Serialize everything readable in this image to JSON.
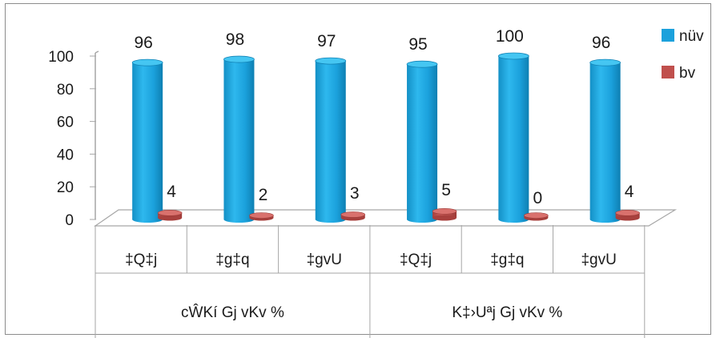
{
  "chart_data": {
    "type": "bar",
    "three_d": true,
    "ylim": [
      0,
      100
    ],
    "y_ticks": [
      "0",
      "20",
      "40",
      "60",
      "80",
      "100"
    ],
    "categories": [
      "‡Q‡j",
      "‡g‡q",
      "‡gvU",
      "‡Q‡j",
      "‡g‡q",
      "‡gvU"
    ],
    "groups": [
      {
        "label": "cŴKí Gj vKv %",
        "span": [
          0,
          3
        ]
      },
      {
        "label": "K‡›Uªj Gj vKv %",
        "span": [
          3,
          6
        ]
      }
    ],
    "series": [
      {
        "name": "nüv",
        "color": "#1BA1DC",
        "values": [
          96,
          98,
          97,
          95,
          100,
          96
        ],
        "labels": [
          "96",
          "98",
          "97",
          "95",
          "100",
          "96"
        ]
      },
      {
        "name": "bv",
        "color": "#C0504D",
        "values": [
          4,
          2,
          3,
          5,
          0,
          4
        ],
        "labels": [
          "4",
          "2",
          "3",
          "5",
          "0",
          "4"
        ]
      }
    ],
    "legend_position": "top-right",
    "grid": false
  }
}
